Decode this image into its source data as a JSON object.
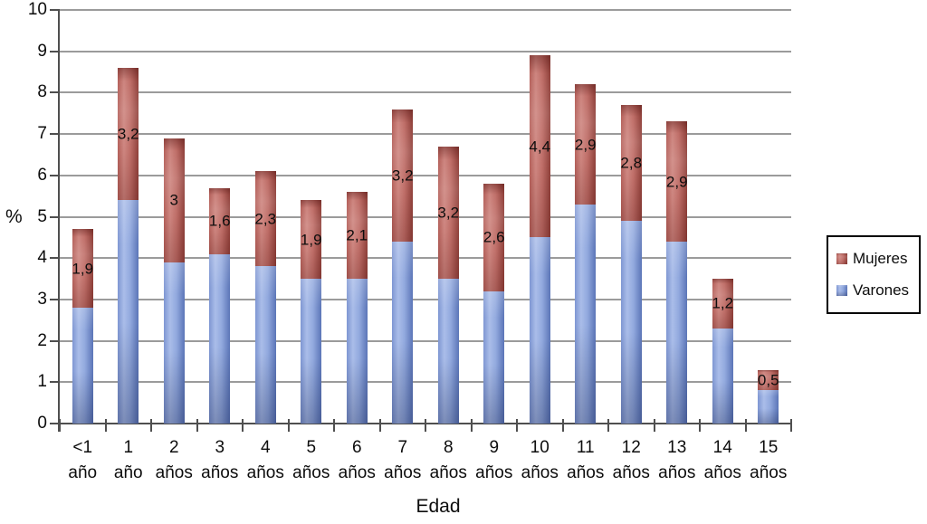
{
  "chart_data": {
    "type": "bar",
    "stacked": true,
    "title": "",
    "xlabel": "Edad",
    "ylabel": "%",
    "ylim": [
      0,
      10
    ],
    "ytick_step": 1,
    "yticks": [
      "0",
      "1",
      "2",
      "3",
      "4",
      "5",
      "6",
      "7",
      "8",
      "9",
      "10"
    ],
    "grid": true,
    "legend_position": "right",
    "categories": [
      {
        "line1": "<1",
        "line2": "año"
      },
      {
        "line1": "1",
        "line2": "año"
      },
      {
        "line1": "2",
        "line2": "años"
      },
      {
        "line1": "3",
        "line2": "años"
      },
      {
        "line1": "4",
        "line2": "años"
      },
      {
        "line1": "5",
        "line2": "años"
      },
      {
        "line1": "6",
        "line2": "años"
      },
      {
        "line1": "7",
        "line2": "años"
      },
      {
        "line1": "8",
        "line2": "años"
      },
      {
        "line1": "9",
        "line2": "años"
      },
      {
        "line1": "10",
        "line2": "años"
      },
      {
        "line1": "11",
        "line2": "años"
      },
      {
        "line1": "12",
        "line2": "años"
      },
      {
        "line1": "13",
        "line2": "años"
      },
      {
        "line1": "14",
        "line2": "años"
      },
      {
        "line1": "15",
        "line2": "años"
      }
    ],
    "series": [
      {
        "name": "Varones",
        "values": [
          2.8,
          5.4,
          3.9,
          4.1,
          3.8,
          3.5,
          3.5,
          4.4,
          3.5,
          3.2,
          4.5,
          5.3,
          4.9,
          4.4,
          2.3,
          0.8
        ],
        "colors": {
          "edge": "#7e96d2",
          "light": "#aabde9",
          "base": "#92a9de",
          "dark": "#5b75b7"
        }
      },
      {
        "name": "Mujeres",
        "values": [
          1.9,
          3.2,
          3.0,
          1.6,
          2.3,
          1.9,
          2.1,
          3.2,
          3.2,
          2.6,
          4.4,
          2.9,
          2.8,
          2.9,
          1.2,
          0.5
        ],
        "labels": [
          "1,9",
          "3,2",
          "3",
          "1,6",
          "2,3",
          "1,9",
          "2,1",
          "3,2",
          "3,2",
          "2,6",
          "4,4",
          "2,9",
          "2,8",
          "2,9",
          "1,2",
          "0,5"
        ],
        "colors": {
          "edge": "#b4605a",
          "light": "#ce8680",
          "base": "#bf6e68",
          "dark": "#8f403a"
        }
      }
    ]
  },
  "colors": {
    "grid": "#9b9b9b",
    "axis": "#4f4f4f",
    "text": "#0d0d0d",
    "legend_border": "#000000",
    "background": "#ffffff"
  }
}
